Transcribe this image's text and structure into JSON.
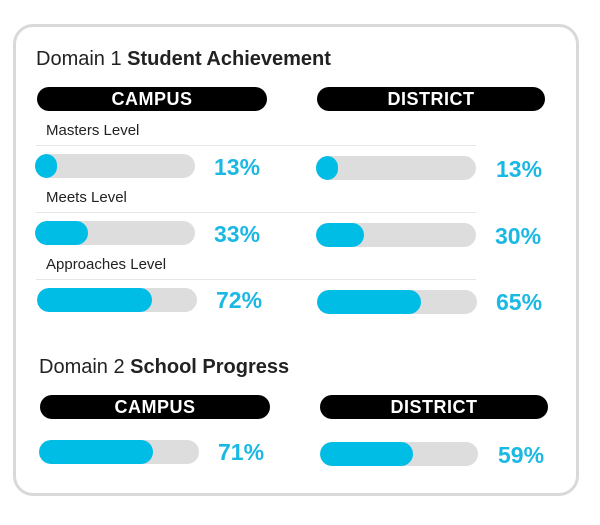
{
  "domain1": {
    "prefix": "Domain 1",
    "title": "Student Achievement",
    "campus_label": "CAMPUS",
    "district_label": "DISTRICT",
    "levels": [
      {
        "label": "Masters Level",
        "campus": {
          "percent": 13,
          "text": "13%"
        },
        "district": {
          "percent": 13,
          "text": "13%"
        }
      },
      {
        "label": "Meets Level",
        "campus": {
          "percent": 33,
          "text": "33%"
        },
        "district": {
          "percent": 30,
          "text": "30%"
        }
      },
      {
        "label": "Approaches Level",
        "campus": {
          "percent": 72,
          "text": "72%"
        },
        "district": {
          "percent": 65,
          "text": "65%"
        }
      }
    ]
  },
  "domain2": {
    "prefix": "Domain 2",
    "title": "School Progress",
    "campus_label": "CAMPUS",
    "district_label": "DISTRICT",
    "campus": {
      "percent": 71,
      "text": "71%"
    },
    "district": {
      "percent": 59,
      "text": "59%"
    }
  },
  "colors": {
    "bar_fill": "#00bde6",
    "bar_track": "#dddddd",
    "percent_text": "#1bb8e4",
    "pill_background": "#000000"
  }
}
